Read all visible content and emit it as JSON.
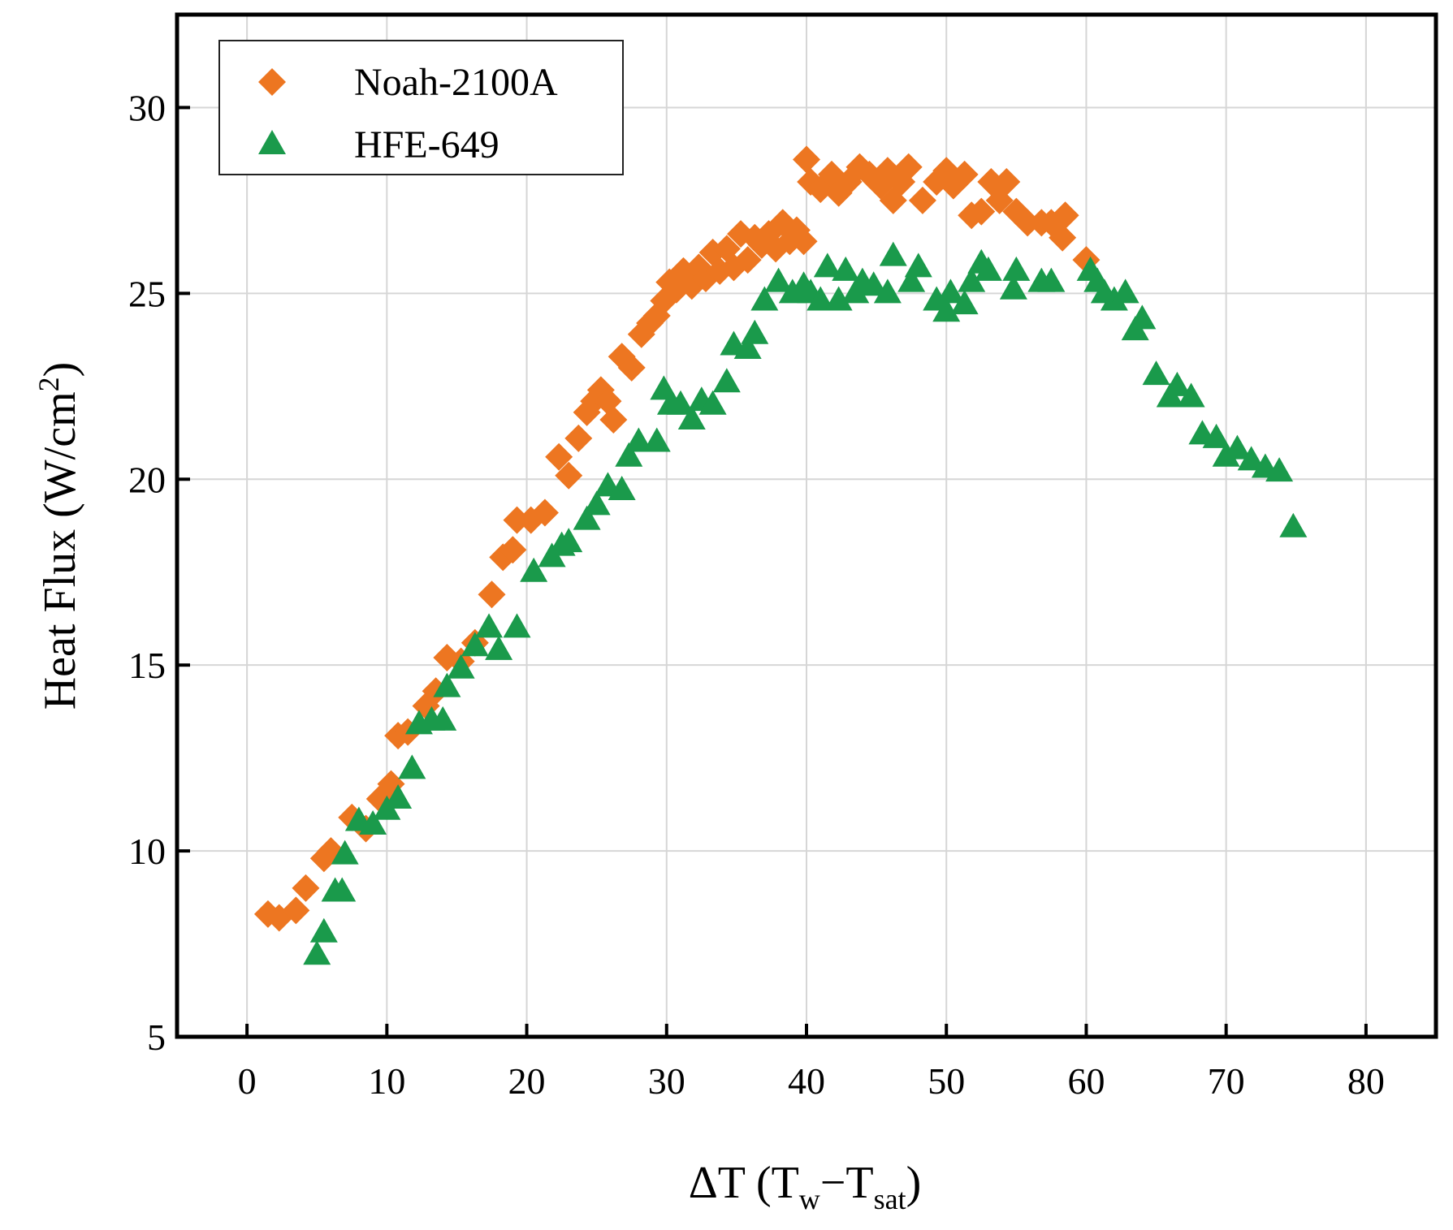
{
  "chart_data": {
    "type": "scatter",
    "title": "",
    "xlabel": {
      "prefix": "ΔT (T",
      "sub1": "w",
      "mid": "−T",
      "sub2": "sat",
      "suffix": ")"
    },
    "ylabel": {
      "prefix": "Heat Flux (W/cm",
      "sup": "2",
      "suffix": ")"
    },
    "xlim": [
      -5,
      85
    ],
    "ylim": [
      5,
      32.5
    ],
    "grid": true,
    "legend_position": "top-left",
    "xticks": [
      0,
      10,
      20,
      30,
      40,
      50,
      60,
      70,
      80
    ],
    "xtick_labels": [
      "0",
      "10",
      "20",
      "30",
      "40",
      "50",
      "60",
      "70",
      "80"
    ],
    "yticks": [
      5,
      10,
      15,
      20,
      25,
      30
    ],
    "ytick_labels": [
      "5",
      "10",
      "15",
      "20",
      "25",
      "30"
    ],
    "series": [
      {
        "name": "Noah-2100A",
        "marker": "diamond",
        "color": "#ED7621",
        "points": [
          [
            1.5,
            8.3
          ],
          [
            2.3,
            8.2
          ],
          [
            3.5,
            8.4
          ],
          [
            4.2,
            9.0
          ],
          [
            5.5,
            9.8
          ],
          [
            6.0,
            10.0
          ],
          [
            7.5,
            10.9
          ],
          [
            8.5,
            10.6
          ],
          [
            9.5,
            11.4
          ],
          [
            10.3,
            11.8
          ],
          [
            10.8,
            13.1
          ],
          [
            11.5,
            13.2
          ],
          [
            12.8,
            13.9
          ],
          [
            13.5,
            14.3
          ],
          [
            14.3,
            15.2
          ],
          [
            15.3,
            15.1
          ],
          [
            16.3,
            15.6
          ],
          [
            17.5,
            16.9
          ],
          [
            18.3,
            17.9
          ],
          [
            19.0,
            18.1
          ],
          [
            19.3,
            18.9
          ],
          [
            20.3,
            18.9
          ],
          [
            21.3,
            19.1
          ],
          [
            22.3,
            20.6
          ],
          [
            23.0,
            20.1
          ],
          [
            23.7,
            21.1
          ],
          [
            24.3,
            21.8
          ],
          [
            24.8,
            22.1
          ],
          [
            25.3,
            22.4
          ],
          [
            25.8,
            22.1
          ],
          [
            26.2,
            21.6
          ],
          [
            26.8,
            23.3
          ],
          [
            27.5,
            23.0
          ],
          [
            28.2,
            23.9
          ],
          [
            28.8,
            24.2
          ],
          [
            29.3,
            24.4
          ],
          [
            29.8,
            24.8
          ],
          [
            30.2,
            25.3
          ],
          [
            30.7,
            25.1
          ],
          [
            31.2,
            25.6
          ],
          [
            31.8,
            25.2
          ],
          [
            32.3,
            25.7
          ],
          [
            32.8,
            25.4
          ],
          [
            33.3,
            26.1
          ],
          [
            33.8,
            25.6
          ],
          [
            34.3,
            26.2
          ],
          [
            34.8,
            25.7
          ],
          [
            35.3,
            26.6
          ],
          [
            35.8,
            25.9
          ],
          [
            36.3,
            26.5
          ],
          [
            36.8,
            26.3
          ],
          [
            37.3,
            26.6
          ],
          [
            37.8,
            26.2
          ],
          [
            38.3,
            26.9
          ],
          [
            38.8,
            26.4
          ],
          [
            39.3,
            26.7
          ],
          [
            39.8,
            26.4
          ],
          [
            40.0,
            28.6
          ],
          [
            40.3,
            28.0
          ],
          [
            41.0,
            27.8
          ],
          [
            41.8,
            28.2
          ],
          [
            42.3,
            27.7
          ],
          [
            43.0,
            28.0
          ],
          [
            43.8,
            28.4
          ],
          [
            44.5,
            28.2
          ],
          [
            45.3,
            27.9
          ],
          [
            45.8,
            28.3
          ],
          [
            46.2,
            27.5
          ],
          [
            46.8,
            28.0
          ],
          [
            47.3,
            28.4
          ],
          [
            48.3,
            27.5
          ],
          [
            49.3,
            28.0
          ],
          [
            50.0,
            28.3
          ],
          [
            50.5,
            27.9
          ],
          [
            51.3,
            28.2
          ],
          [
            51.8,
            27.1
          ],
          [
            52.5,
            27.2
          ],
          [
            53.2,
            28.0
          ],
          [
            53.8,
            27.5
          ],
          [
            54.3,
            28.0
          ],
          [
            55.0,
            27.2
          ],
          [
            55.8,
            26.9
          ],
          [
            56.8,
            26.9
          ],
          [
            57.5,
            26.9
          ],
          [
            58.3,
            26.5
          ],
          [
            58.5,
            27.1
          ],
          [
            60.0,
            25.9
          ]
        ]
      },
      {
        "name": "HFE-649",
        "marker": "triangle",
        "color": "#1A9A4B",
        "points": [
          [
            5.0,
            7.2
          ],
          [
            5.5,
            7.8
          ],
          [
            6.3,
            8.9
          ],
          [
            6.8,
            8.9
          ],
          [
            7.0,
            9.9
          ],
          [
            8.0,
            10.8
          ],
          [
            9.0,
            10.7
          ],
          [
            10.0,
            11.1
          ],
          [
            10.8,
            11.4
          ],
          [
            11.8,
            12.2
          ],
          [
            12.3,
            13.4
          ],
          [
            13.2,
            13.5
          ],
          [
            14.0,
            13.5
          ],
          [
            14.3,
            14.4
          ],
          [
            15.3,
            14.9
          ],
          [
            16.3,
            15.5
          ],
          [
            17.3,
            16.0
          ],
          [
            18.0,
            15.4
          ],
          [
            19.3,
            16.0
          ],
          [
            20.5,
            17.5
          ],
          [
            21.8,
            17.9
          ],
          [
            22.5,
            18.2
          ],
          [
            23.0,
            18.3
          ],
          [
            24.3,
            18.9
          ],
          [
            25.0,
            19.3
          ],
          [
            25.8,
            19.8
          ],
          [
            26.8,
            19.7
          ],
          [
            27.3,
            20.6
          ],
          [
            28.0,
            21.0
          ],
          [
            29.3,
            21.0
          ],
          [
            29.8,
            22.4
          ],
          [
            30.3,
            22.0
          ],
          [
            31.0,
            22.0
          ],
          [
            31.8,
            21.6
          ],
          [
            32.5,
            22.1
          ],
          [
            33.3,
            22.0
          ],
          [
            34.3,
            22.6
          ],
          [
            34.8,
            23.6
          ],
          [
            35.8,
            23.5
          ],
          [
            36.3,
            23.9
          ],
          [
            37.0,
            24.8
          ],
          [
            38.0,
            25.3
          ],
          [
            39.0,
            25.0
          ],
          [
            39.8,
            25.2
          ],
          [
            40.3,
            25.0
          ],
          [
            41.0,
            24.8
          ],
          [
            41.5,
            25.7
          ],
          [
            42.3,
            24.8
          ],
          [
            42.8,
            25.6
          ],
          [
            43.5,
            25.0
          ],
          [
            44.0,
            25.3
          ],
          [
            44.8,
            25.2
          ],
          [
            45.8,
            25.0
          ],
          [
            46.2,
            26.0
          ],
          [
            47.5,
            25.3
          ],
          [
            48.0,
            25.7
          ],
          [
            49.3,
            24.8
          ],
          [
            50.0,
            24.5
          ],
          [
            50.3,
            25.0
          ],
          [
            51.3,
            24.7
          ],
          [
            51.8,
            25.3
          ],
          [
            52.5,
            25.8
          ],
          [
            53.0,
            25.6
          ],
          [
            54.8,
            25.1
          ],
          [
            55.0,
            25.6
          ],
          [
            56.8,
            25.3
          ],
          [
            57.5,
            25.3
          ],
          [
            60.3,
            25.6
          ],
          [
            60.8,
            25.3
          ],
          [
            61.3,
            25.0
          ],
          [
            62.0,
            24.8
          ],
          [
            62.8,
            25.0
          ],
          [
            63.5,
            24.0
          ],
          [
            64.0,
            24.3
          ],
          [
            65.0,
            22.8
          ],
          [
            66.0,
            22.2
          ],
          [
            66.5,
            22.5
          ],
          [
            67.5,
            22.2
          ],
          [
            68.3,
            21.2
          ],
          [
            69.3,
            21.1
          ],
          [
            70.0,
            20.6
          ],
          [
            70.8,
            20.8
          ],
          [
            71.8,
            20.5
          ],
          [
            72.8,
            20.3
          ],
          [
            73.8,
            20.2
          ],
          [
            74.8,
            18.7
          ]
        ]
      }
    ]
  }
}
